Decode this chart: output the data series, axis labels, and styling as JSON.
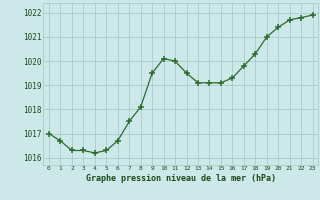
{
  "x": [
    0,
    1,
    2,
    3,
    4,
    5,
    6,
    7,
    8,
    9,
    10,
    11,
    12,
    13,
    14,
    15,
    16,
    17,
    18,
    19,
    20,
    21,
    22,
    23
  ],
  "y": [
    1017.0,
    1016.7,
    1016.3,
    1016.3,
    1016.2,
    1016.3,
    1016.7,
    1017.5,
    1018.1,
    1019.5,
    1020.1,
    1020.0,
    1019.5,
    1019.1,
    1019.1,
    1019.1,
    1019.3,
    1019.8,
    1020.3,
    1021.0,
    1021.4,
    1021.7,
    1021.8,
    1021.9
  ],
  "title": "Graphe pression niveau de la mer (hPa)",
  "ylabel_ticks": [
    1016,
    1017,
    1018,
    1019,
    1020,
    1021,
    1022
  ],
  "xlabel_ticks": [
    0,
    1,
    2,
    3,
    4,
    5,
    6,
    7,
    8,
    9,
    10,
    11,
    12,
    13,
    14,
    15,
    16,
    17,
    18,
    19,
    20,
    21,
    22,
    23
  ],
  "line_color": "#2d6a2d",
  "marker_color": "#2d6a2d",
  "plot_bg_color": "#cce8e8",
  "fig_bg_color": "#cce8e8",
  "grid_color": "#a0c8c8",
  "title_color": "#1a4a1a",
  "title_bg": "#2d6a2d",
  "ylim": [
    1015.7,
    1022.4
  ],
  "xlim": [
    -0.5,
    23.5
  ]
}
